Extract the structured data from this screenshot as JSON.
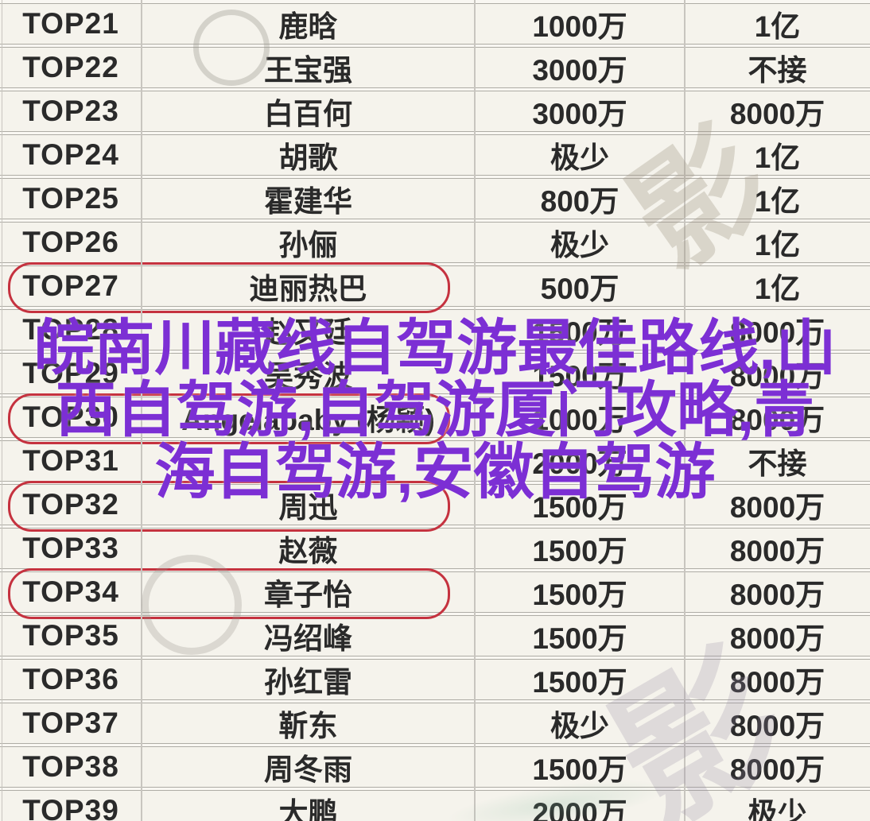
{
  "colors": {
    "page_bg": "#f9f7f2",
    "row_bg": "#f5f3ec",
    "row_border": "#aeaca5",
    "grid_line": "#c8c5bf",
    "text": "#2a2a2a",
    "highlight_red": "#c5323f",
    "overlay_purple": "#7c2fd4",
    "watermark_tint": "rgba(160,148,130,0.32)"
  },
  "table": {
    "rows": [
      {
        "rank": "TOP21",
        "name": "鹿晗",
        "fee1": "1000万",
        "fee2": "1亿",
        "circled": false
      },
      {
        "rank": "TOP22",
        "name": "王宝强",
        "fee1": "3000万",
        "fee2": "不接",
        "circled": false
      },
      {
        "rank": "TOP23",
        "name": "白百何",
        "fee1": "3000万",
        "fee2": "8000万",
        "circled": false
      },
      {
        "rank": "TOP24",
        "name": "胡歌",
        "fee1": "极少",
        "fee2": "1亿",
        "circled": false
      },
      {
        "rank": "TOP25",
        "name": "霍建华",
        "fee1": "800万",
        "fee2": "1亿",
        "circled": false
      },
      {
        "rank": "TOP26",
        "name": "孙俪",
        "fee1": "极少",
        "fee2": "1亿",
        "circled": false
      },
      {
        "rank": "TOP27",
        "name": "迪丽热巴",
        "fee1": "500万",
        "fee2": "1亿",
        "circled": true
      },
      {
        "rank": "TOP28",
        "name": "赵又廷",
        "fee1": "1500万",
        "fee2": "8000万",
        "circled": false
      },
      {
        "rank": "TOP29",
        "name": "吴秀波",
        "fee1": "1500万",
        "fee2": "8000万",
        "circled": false
      },
      {
        "rank": "TOP30",
        "name": "Angelababy (杨颖)",
        "fee1": "1000万",
        "fee2": "8000万",
        "circled": true
      },
      {
        "rank": "TOP31",
        "name": "",
        "fee1": "2000万",
        "fee2": "不接",
        "circled": false
      },
      {
        "rank": "TOP32",
        "name": "周迅",
        "fee1": "1500万",
        "fee2": "8000万",
        "circled": true
      },
      {
        "rank": "TOP33",
        "name": "赵薇",
        "fee1": "1500万",
        "fee2": "8000万",
        "circled": false
      },
      {
        "rank": "TOP34",
        "name": "章子怡",
        "fee1": "1500万",
        "fee2": "8000万",
        "circled": true
      },
      {
        "rank": "TOP35",
        "name": "冯绍峰",
        "fee1": "1500万",
        "fee2": "8000万",
        "circled": false
      },
      {
        "rank": "TOP36",
        "name": "孙红雷",
        "fee1": "1500万",
        "fee2": "8000万",
        "circled": false
      },
      {
        "rank": "TOP37",
        "name": "靳东",
        "fee1": "极少",
        "fee2": "8000万",
        "circled": false
      },
      {
        "rank": "TOP38",
        "name": "周冬雨",
        "fee1": "1500万",
        "fee2": "8000万",
        "circled": false
      },
      {
        "rank": "TOP39",
        "name": "大鹏",
        "fee1": "2000万",
        "fee2": "极少",
        "circled": false
      }
    ]
  },
  "overlay": {
    "lines": [
      "皖南川藏线自驾游最佳路线,山",
      "西自驾游,自驾游厦门攻略,青",
      "海自驾游,安徽自驾游"
    ],
    "full_text": "皖南川藏线自驾游最佳路线,山西自驾游,自驾游厦门攻略,青海自驾游,安徽自驾游"
  },
  "watermarks": {
    "glyph_top_right": "影",
    "glyph_bottom_right": "影"
  }
}
